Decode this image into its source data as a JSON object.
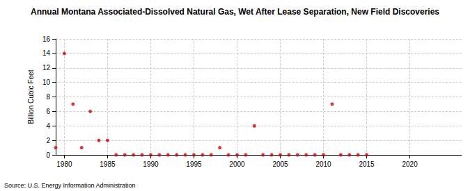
{
  "chart_data": {
    "type": "scatter",
    "title": "Annual Montana Associated-Dissolved Natural Gas, Wet After Lease Separation, New Field Discoveries",
    "y_label": "Billion Cubic Feet",
    "source": "Source: U.S. Energy Information Administration",
    "x": [
      1979,
      1980,
      1981,
      1982,
      1983,
      1984,
      1985,
      1986,
      1987,
      1988,
      1989,
      1990,
      1991,
      1992,
      1993,
      1994,
      1995,
      1996,
      1997,
      1998,
      1999,
      2000,
      2001,
      2002,
      2003,
      2004,
      2005,
      2006,
      2007,
      2008,
      2009,
      2010,
      2011,
      2012,
      2013,
      2014,
      2015
    ],
    "values": [
      1,
      14,
      7,
      1,
      6,
      2,
      2,
      0,
      0,
      0,
      0,
      0,
      0,
      0,
      0,
      0,
      0,
      0,
      0,
      1,
      0,
      0,
      0,
      4,
      0,
      0,
      0,
      0,
      0,
      0,
      0,
      0,
      7,
      0,
      0,
      0,
      0
    ],
    "color": "#cc0000",
    "marker": "circle",
    "xlim": [
      1979,
      2026
    ],
    "xticks": [
      1980,
      1985,
      1990,
      1995,
      2000,
      2005,
      2010,
      2015,
      2020
    ],
    "ylim": [
      0,
      16
    ],
    "yticks": [
      0,
      2,
      4,
      6,
      8,
      10,
      12,
      14,
      16
    ],
    "grid": true
  }
}
